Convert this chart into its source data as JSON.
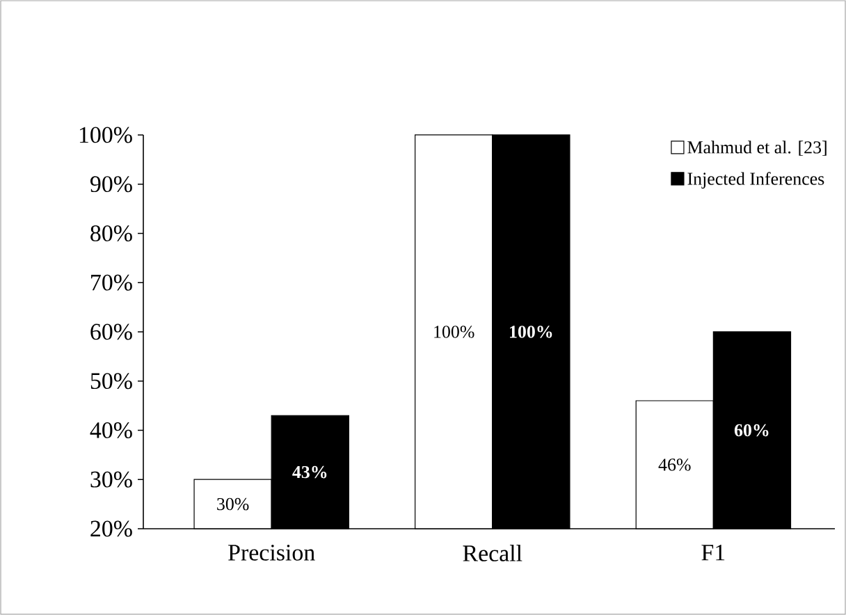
{
  "chart_data": {
    "type": "bar",
    "categories": [
      "Precision",
      "Recall",
      "F1"
    ],
    "series": [
      {
        "name": "Mahmud et al. [23]",
        "color": "#ffffff",
        "values": [
          30,
          100,
          46
        ],
        "value_labels": [
          "30%",
          "100%",
          "46%"
        ]
      },
      {
        "name": "Injected Inferences",
        "color": "#000000",
        "values": [
          43,
          100,
          60
        ],
        "value_labels": [
          "43%",
          "100%",
          "60%"
        ]
      }
    ],
    "ylim": [
      20,
      100
    ],
    "yticks": [
      {
        "value": 20,
        "label": "20%"
      },
      {
        "value": 30,
        "label": "30%"
      },
      {
        "value": 40,
        "label": "40%"
      },
      {
        "value": 50,
        "label": "50%"
      },
      {
        "value": 60,
        "label": "60%"
      },
      {
        "value": 70,
        "label": "70%"
      },
      {
        "value": 80,
        "label": "80%"
      },
      {
        "value": 90,
        "label": "90%"
      },
      {
        "value": 100,
        "label": "100%"
      }
    ],
    "grid": false,
    "legend": "top right"
  }
}
